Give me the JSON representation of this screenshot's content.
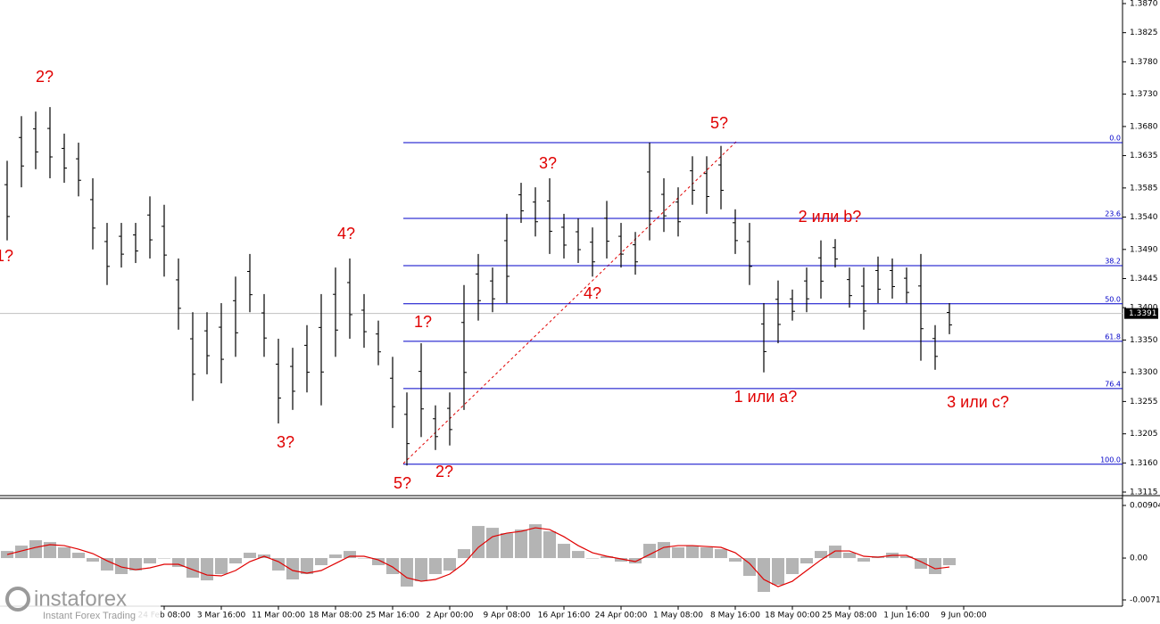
{
  "chart_data": [
    {
      "type": "ohlc",
      "categories": [
        null,
        null,
        null,
        null,
        null,
        null,
        null,
        null,
        null,
        null,
        null,
        "24 Feb 08:00",
        null,
        null,
        null,
        "3 Mar 16:00",
        null,
        null,
        null,
        "11 Mar 00:00",
        null,
        null,
        null,
        "18 Mar 08:00",
        null,
        null,
        null,
        "25 Mar 16:00",
        null,
        null,
        null,
        "2 Apr 00:00",
        null,
        null,
        null,
        "9 Apr 08:00",
        null,
        null,
        null,
        "16 Apr 16:00",
        null,
        null,
        null,
        "24 Apr 00:00",
        null,
        null,
        null,
        "1 May 08:00",
        null,
        null,
        null,
        "8 May 16:00",
        null,
        null,
        null,
        "18 May 00:00",
        null,
        null,
        null,
        "25 May 08:00",
        null,
        null,
        null,
        "1 Jun 16:00",
        null,
        null,
        null,
        "9 Jun 00:00"
      ],
      "high": [
        1.3627,
        1.3696,
        1.3703,
        1.371,
        1.3669,
        1.3655,
        1.36,
        1.3531,
        1.3531,
        1.3531,
        1.3572,
        1.3559,
        1.3476,
        1.3393,
        1.3393,
        1.3407,
        1.3448,
        1.3483,
        1.3421,
        1.3352,
        1.3338,
        1.3373,
        1.3421,
        1.3462,
        1.3476,
        1.3421,
        1.338,
        1.3324,
        1.3269,
        1.3345,
        1.3249,
        1.3269,
        1.3435,
        1.3483,
        1.3462,
        1.3545,
        1.3593,
        1.3586,
        1.36,
        1.3545,
        1.3538,
        1.3524,
        1.3565,
        1.3531,
        1.3517,
        1.3655,
        1.36,
        1.3586,
        1.3634,
        1.3634,
        1.365,
        1.3552,
        1.3531,
        1.3407,
        1.3442,
        1.3428,
        1.3462,
        1.3504,
        1.3506,
        1.3462,
        1.3462,
        1.3479,
        1.3476,
        1.3462,
        1.3483,
        1.3373,
        1.3407,
        null
      ],
      "low": [
        1.3504,
        1.3586,
        1.3614,
        1.36,
        1.3593,
        1.3572,
        1.349,
        1.3435,
        1.3462,
        1.3469,
        1.3476,
        1.3448,
        1.3366,
        1.3256,
        1.3297,
        1.3283,
        1.3324,
        1.3393,
        1.3324,
        1.3221,
        1.3242,
        1.3269,
        1.3249,
        1.3324,
        1.3352,
        1.3338,
        1.3311,
        1.3214,
        1.3156,
        1.32,
        1.318,
        1.3187,
        1.3242,
        1.338,
        1.3393,
        1.3407,
        1.3531,
        1.351,
        1.3483,
        1.3476,
        1.3469,
        1.3448,
        1.3476,
        1.3462,
        1.3451,
        1.3504,
        1.3517,
        1.351,
        1.3559,
        1.3545,
        1.3552,
        1.3483,
        1.3435,
        1.33,
        1.3345,
        1.338,
        1.3393,
        1.3414,
        1.3462,
        1.34,
        1.3366,
        1.3407,
        1.3414,
        1.3407,
        1.3318,
        1.3304,
        1.3359,
        null
      ],
      "color": "#000000",
      "ylim": [
        1.3115,
        1.387
      ],
      "yticks": [
        {
          "value": 1.387,
          "label": "1.3870"
        },
        1.3825,
        {
          "value": 1.378,
          "label": "1.3780"
        },
        {
          "value": 1.373,
          "label": "1.3730"
        },
        {
          "value": 1.368,
          "label": "1.3680"
        },
        1.3635,
        1.3585,
        {
          "value": 1.354,
          "label": "1.3540"
        },
        {
          "value": 1.349,
          "label": "1.3490"
        },
        1.3445,
        {
          "value": 1.34,
          "label": "1.3400"
        },
        {
          "value": 1.335,
          "label": "1.3350"
        },
        {
          "value": 1.33,
          "label": "1.3300"
        },
        1.3255,
        1.3205,
        {
          "value": 1.316,
          "label": "1.3160"
        },
        1.3115
      ],
      "last_price": 1.3391,
      "fib_color": "#0000c8",
      "fib_levels": [
        {
          "label": "0.0",
          "price": 1.3655
        },
        {
          "label": "23.6",
          "price": 1.3538
        },
        {
          "label": "38.2",
          "price": 1.3465
        },
        {
          "label": "50.0",
          "price": 1.3406
        },
        {
          "label": "61.8",
          "price": 1.3348
        },
        {
          "label": "76.4",
          "price": 1.3275
        },
        {
          "label": "100.0",
          "price": 1.3158
        }
      ],
      "annotations": [
        "2?",
        "1?",
        "4?",
        "3?",
        "5?",
        "2?",
        "1?",
        "3?",
        "4?",
        "5?",
        "2 или b?",
        "1 или a?",
        "3 или c?"
      ]
    },
    {
      "type": "macd",
      "histogram": [
        0.00122,
        0.00214,
        0.00306,
        0.00275,
        0.00184,
        0.00092,
        -0.00061,
        -0.00214,
        -0.00275,
        -0.00214,
        -0.00092,
        0,
        -0.00153,
        -0.00337,
        -0.00383,
        -0.00275,
        -0.00092,
        0.00092,
        0.00061,
        -0.00214,
        -0.00367,
        -0.00275,
        -0.00122,
        0.00061,
        0.00122,
        0,
        -0.00122,
        -0.00275,
        -0.0049,
        -0.00398,
        -0.00275,
        -0.00214,
        0.00153,
        0.00551,
        0.0052,
        0.00428,
        0.0049,
        0.00581,
        0.00459,
        0.00245,
        0.00122,
        0,
        0.00031,
        -0.00061,
        -0.00092,
        0.00245,
        0.00275,
        0.00184,
        0.00214,
        0.00184,
        0.00153,
        -0.00061,
        -0.00306,
        -0.00581,
        -0.00459,
        -0.00275,
        -0.00092,
        0.00122,
        0.00214,
        0.00092,
        -0.00061,
        0.00031,
        0.00092,
        0.00031,
        -0.00184,
        -0.00275,
        -0.00122,
        null
      ],
      "signal": [
        0.00061,
        0.00122,
        0.00184,
        0.0023,
        0.00214,
        0.00153,
        0.00077,
        -0.00046,
        -0.00153,
        -0.00199,
        -0.00168,
        -0.00107,
        -0.00107,
        -0.00199,
        -0.00291,
        -0.00306,
        -0.00214,
        -0.00061,
        0.00031,
        -0.00061,
        -0.00214,
        -0.0026,
        -0.00214,
        -0.00092,
        0.00031,
        0.00031,
        -0.00031,
        -0.00153,
        -0.00337,
        -0.00398,
        -0.00367,
        -0.00275,
        -0.00092,
        0.00184,
        0.00367,
        0.00428,
        0.00459,
        0.0052,
        0.0049,
        0.00367,
        0.00214,
        0.00092,
        0.00031,
        -0.00015,
        -0.00061,
        0.00061,
        0.00184,
        0.00214,
        0.00214,
        0.00199,
        0.00184,
        0.00092,
        -0.00092,
        -0.00367,
        -0.0049,
        -0.00398,
        -0.00214,
        -0.00031,
        0.00122,
        0.00122,
        0.00031,
        0.00015,
        0.00046,
        0.00046,
        -0.00061,
        -0.00184,
        -0.00153,
        null
      ],
      "histogram_color": "#b4b4b4",
      "signal_color": "#e00000",
      "ylim": [
        -0.00719,
        0.00904
      ],
      "yticks": [
        0.00904,
        {
          "value": 0,
          "label": "0.00"
        },
        -0.00719
      ]
    }
  ],
  "branding": {
    "logo": "instaforex",
    "tagline": "Instant Forex Trading"
  }
}
